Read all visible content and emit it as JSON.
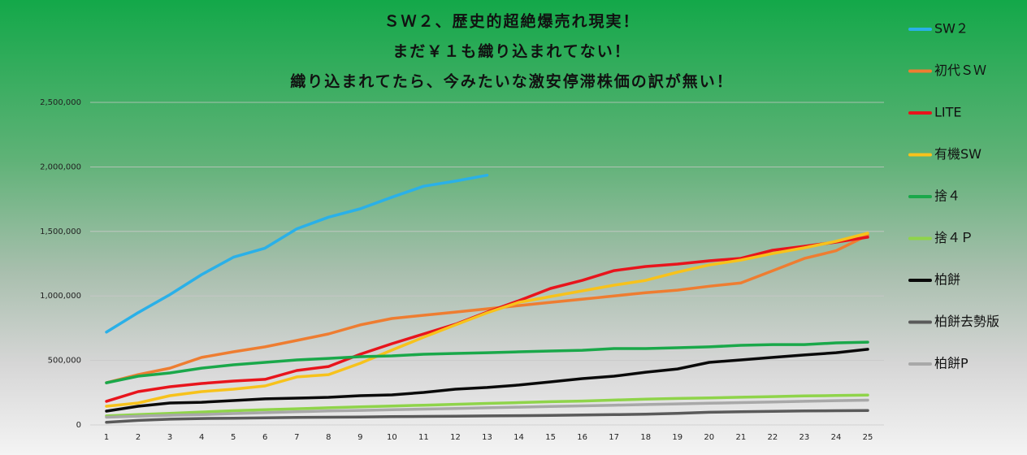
{
  "chart_data": {
    "type": "line",
    "title": [
      "ＳＷ２、歴史的超絶爆売れ現実！",
      "まだ￥１も織り込まれてない！",
      "織り込まれてたら、今みたいな激安停滞株価の訳が無い！"
    ],
    "x": [
      1,
      2,
      3,
      4,
      5,
      6,
      7,
      8,
      9,
      10,
      11,
      12,
      13,
      14,
      15,
      16,
      17,
      18,
      19,
      20,
      21,
      22,
      23,
      24,
      25
    ],
    "xlim": [
      1,
      25
    ],
    "xticks": [
      1,
      2,
      3,
      4,
      5,
      6,
      7,
      8,
      9,
      10,
      11,
      12,
      13,
      14,
      15,
      16,
      17,
      18,
      19,
      20,
      21,
      22,
      23,
      24,
      25
    ],
    "ylim": [
      0,
      2500000
    ],
    "yticks": [
      0,
      {
        "value": 500000,
        "label": "500,000"
      },
      {
        "value": 1000000,
        "label": "1,000,000"
      },
      {
        "value": 1500000,
        "label": "1,500,000"
      },
      {
        "value": 2000000,
        "label": "2,000,000"
      },
      {
        "value": 2500000,
        "label": "2,500,000"
      }
    ],
    "grid": true,
    "legend": "right",
    "series": [
      {
        "name": "SW２",
        "color": "#2ab0e8",
        "values": [
          720000,
          870000,
          1010000,
          1165000,
          1300000,
          1370000,
          1520000,
          1610000,
          1675000,
          1765000,
          1850000,
          1890000,
          1935000,
          null,
          null,
          null,
          null,
          null,
          null,
          null,
          null,
          null,
          null,
          null,
          null
        ]
      },
      {
        "name": "初代ＳＷ",
        "color": "#ee7d31",
        "values": [
          327000,
          390000,
          440000,
          523000,
          567000,
          605000,
          655000,
          705000,
          775000,
          825000,
          850000,
          875000,
          900000,
          925000,
          950000,
          975000,
          1000000,
          1025000,
          1045000,
          1075000,
          1100000,
          1195000,
          1290000,
          1350000,
          1470000
        ]
      },
      {
        "name": "LITE",
        "color": "#e8141c",
        "values": [
          183000,
          258000,
          296000,
          321000,
          340000,
          353000,
          422000,
          453000,
          548000,
          630000,
          705000,
          780000,
          875000,
          963000,
          1058000,
          1120000,
          1196000,
          1228000,
          1247000,
          1272000,
          1291000,
          1354000,
          1385000,
          1417000,
          1455000
        ]
      },
      {
        "name": "有機SW",
        "color": "#f7c21b",
        "values": [
          145000,
          170000,
          227000,
          258000,
          277000,
          302000,
          372000,
          390000,
          478000,
          580000,
          680000,
          775000,
          869000,
          950000,
          995000,
          1039000,
          1083000,
          1120000,
          1184000,
          1240000,
          1278000,
          1329000,
          1373000,
          1423000,
          1486000
        ]
      },
      {
        "name": "捨４",
        "color": "#1aa84a",
        "values": [
          327000,
          378000,
          403000,
          440000,
          466000,
          485000,
          504000,
          516000,
          529000,
          535000,
          548000,
          554000,
          560000,
          567000,
          573000,
          579000,
          592000,
          592000,
          598000,
          605000,
          617000,
          623000,
          623000,
          636000,
          642000
        ]
      },
      {
        "name": "捨４Ｐ",
        "color": "#8fd44a",
        "values": [
          70000,
          80000,
          90000,
          100000,
          110000,
          118000,
          125000,
          133000,
          140000,
          147000,
          153000,
          160000,
          167000,
          173000,
          180000,
          185000,
          193000,
          200000,
          205000,
          210000,
          215000,
          220000,
          225000,
          228000,
          232000
        ]
      },
      {
        "name": "柏餅",
        "color": "#0a0a0a",
        "values": [
          107000,
          145000,
          170000,
          176000,
          189000,
          202000,
          208000,
          214000,
          227000,
          233000,
          252000,
          277000,
          290000,
          309000,
          334000,
          359000,
          378000,
          409000,
          434000,
          485000,
          504000,
          523000,
          542000,
          560000,
          586000
        ]
      },
      {
        "name": "柏餅去勢版",
        "color": "#5a5a5a",
        "values": [
          20000,
          35000,
          45000,
          50000,
          52000,
          55000,
          58000,
          60000,
          62000,
          64000,
          66000,
          68000,
          70000,
          72000,
          74000,
          77000,
          80000,
          83000,
          90000,
          98000,
          102000,
          105000,
          108000,
          110000,
          112000
        ]
      },
      {
        "name": "柏餅P",
        "color": "#a8a8a8",
        "values": [
          60000,
          68000,
          75000,
          80000,
          88000,
          95000,
          102000,
          108000,
          113000,
          118000,
          123000,
          128000,
          133000,
          138000,
          143000,
          148000,
          153000,
          158000,
          163000,
          168000,
          173000,
          178000,
          183000,
          188000,
          192000
        ]
      }
    ]
  }
}
